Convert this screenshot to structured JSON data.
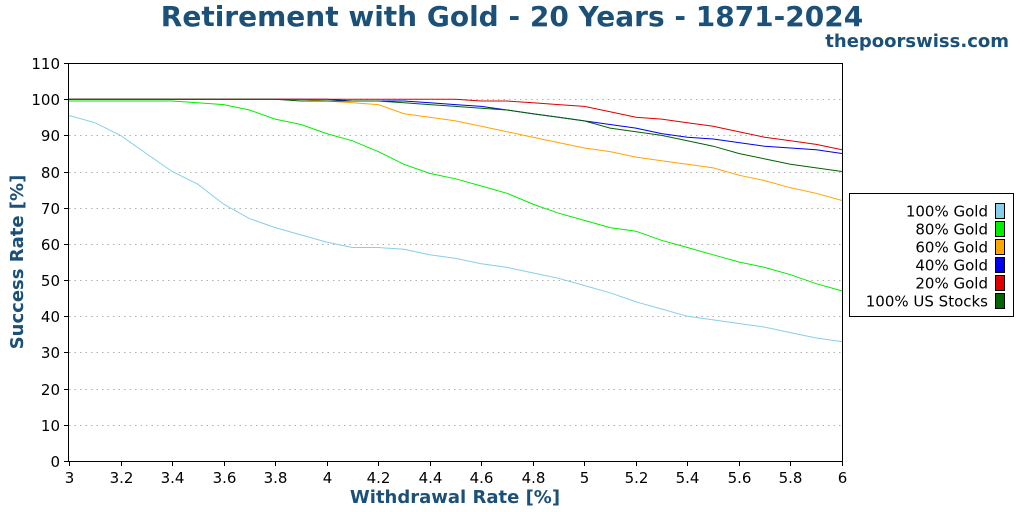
{
  "chart_data": {
    "type": "line",
    "title": "Retirement with Gold - 20 Years - 1871-2024",
    "source": "thepoorswiss.com",
    "xlabel": "Withdrawal Rate [%]",
    "ylabel": "Success Rate [%]",
    "xlim": [
      3,
      6
    ],
    "ylim": [
      0,
      110
    ],
    "xticks": [
      "3",
      "3.2",
      "3.4",
      "3.6",
      "3.8",
      "4",
      "4.2",
      "4.4",
      "4.6",
      "4.8",
      "5",
      "5.2",
      "5.4",
      "5.6",
      "5.8",
      "6"
    ],
    "yticks": [
      "0",
      "10",
      "20",
      "30",
      "40",
      "50",
      "60",
      "70",
      "80",
      "90",
      "100",
      "110"
    ],
    "grid": "horizontal-dotted",
    "legend_position": "right",
    "x": [
      3.0,
      3.1,
      3.2,
      3.3,
      3.4,
      3.5,
      3.6,
      3.7,
      3.8,
      3.9,
      4.0,
      4.1,
      4.2,
      4.3,
      4.4,
      4.5,
      4.6,
      4.7,
      4.8,
      4.9,
      5.0,
      5.1,
      5.2,
      5.3,
      5.4,
      5.5,
      5.6,
      5.7,
      5.8,
      5.9,
      6.0
    ],
    "series": [
      {
        "name": "100% Gold",
        "color": "#87ceeb",
        "values": [
          95.5,
          93.5,
          90,
          85,
          80,
          76.5,
          71,
          67,
          64.5,
          62.5,
          60.5,
          59,
          59,
          58.5,
          57,
          56,
          54.5,
          53.5,
          52,
          50.5,
          48.5,
          46.5,
          44,
          42,
          40,
          39,
          38,
          37,
          35.5,
          34,
          33
        ]
      },
      {
        "name": "80% Gold",
        "color": "#00ee00",
        "values": [
          99.5,
          99.5,
          99.5,
          99.5,
          99.5,
          99,
          98.5,
          97,
          94.5,
          93,
          90.5,
          88.5,
          85.5,
          82,
          79.5,
          78,
          76,
          74,
          71,
          68.5,
          66.5,
          64.5,
          63.5,
          61,
          59,
          57,
          55,
          53.5,
          51.5,
          49,
          47
        ]
      },
      {
        "name": "60% Gold",
        "color": "#ffa500",
        "values": [
          100,
          100,
          100,
          100,
          100,
          100,
          100,
          100,
          100,
          100,
          99.5,
          99,
          98.5,
          96,
          95,
          94,
          92.5,
          91,
          89.5,
          88,
          86.5,
          85.5,
          84,
          83,
          82,
          81,
          79,
          77.5,
          75.5,
          74,
          72
        ]
      },
      {
        "name": "40% Gold",
        "color": "#0000ee",
        "values": [
          100,
          100,
          100,
          100,
          100,
          100,
          100,
          100,
          100,
          100,
          100,
          99.5,
          99.5,
          99.5,
          99,
          98.5,
          98,
          97,
          96,
          95,
          94,
          93,
          92,
          90.5,
          89.5,
          89,
          88,
          87,
          86.5,
          86,
          85
        ]
      },
      {
        "name": "20% Gold",
        "color": "#dd0000",
        "values": [
          100,
          100,
          100,
          100,
          100,
          100,
          100,
          100,
          100,
          100,
          100,
          100,
          100,
          100,
          100,
          100,
          99.5,
          99.5,
          99,
          98.5,
          98,
          96.5,
          95,
          94.5,
          93.5,
          92.5,
          91,
          89.5,
          88.5,
          87.5,
          86
        ]
      },
      {
        "name": "100% US Stocks",
        "color": "#006400",
        "values": [
          100,
          100,
          100,
          100,
          100,
          100,
          100,
          100,
          100,
          99.5,
          99.5,
          99.5,
          99.5,
          99,
          98.5,
          98,
          97.5,
          97,
          96,
          95,
          94,
          92,
          91,
          90,
          88.5,
          87,
          85,
          83.5,
          82,
          81,
          80
        ]
      }
    ]
  }
}
